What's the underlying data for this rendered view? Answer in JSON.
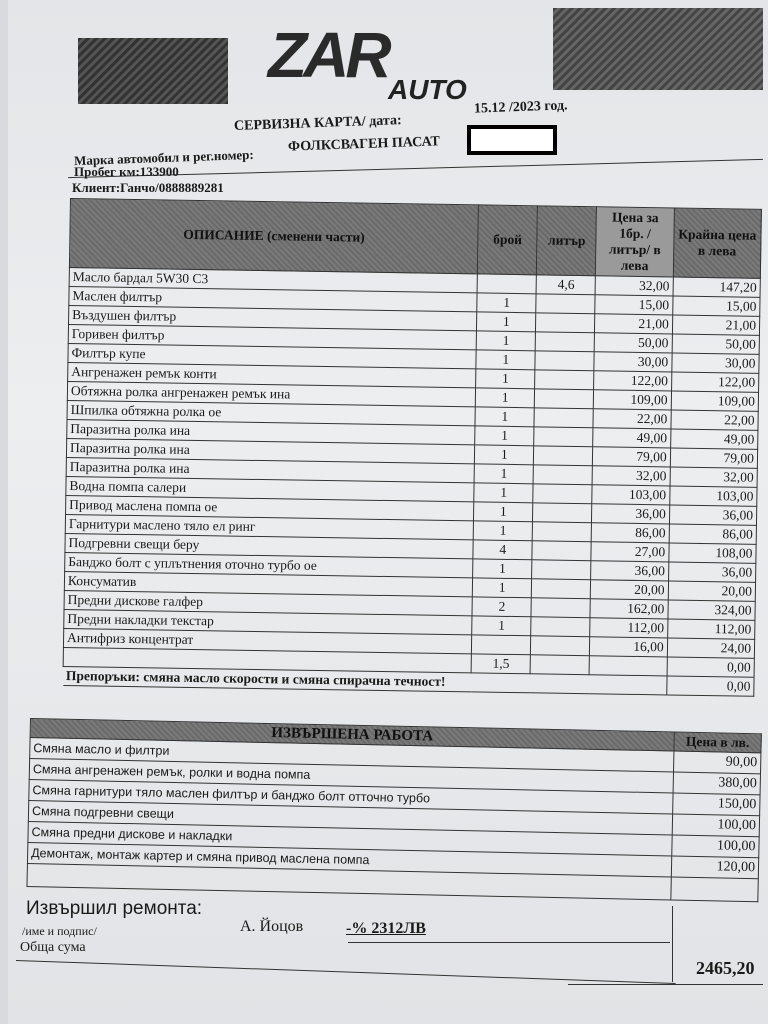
{
  "logo": {
    "brand": "ZAR",
    "sub": "AUTO"
  },
  "header": {
    "title": "СЕРВИЗНА КАРТА/ дата:",
    "date": "15.12 /2023 год.",
    "car_label": "Марка автомобил и рег.номер:",
    "car_value": "ФОЛКСВАГЕН ПАСАТ",
    "mileage": "Пробег км:133900",
    "client": "Клиент:Ганчо/0888889281"
  },
  "parts_table": {
    "headers": {
      "description": "ОПИСАНИЕ (сменени части)",
      "qty": "брой",
      "liters": "литър",
      "unit_price": "Цена за 1бр. /литър/ в лева",
      "total": "Крайна цена в лева"
    },
    "rows": [
      {
        "desc": "Масло бардал 5W30 C3",
        "qty": "",
        "liters": "4,6",
        "price": "32,00",
        "total": "147,20"
      },
      {
        "desc": "Маслен филтър",
        "qty": "1",
        "liters": "",
        "price": "15,00",
        "total": "15,00"
      },
      {
        "desc": "Въздушен филтър",
        "qty": "1",
        "liters": "",
        "price": "21,00",
        "total": "21,00"
      },
      {
        "desc": "Горивен филтър",
        "qty": "1",
        "liters": "",
        "price": "50,00",
        "total": "50,00"
      },
      {
        "desc": "Филтър купе",
        "qty": "1",
        "liters": "",
        "price": "30,00",
        "total": "30,00"
      },
      {
        "desc": "Ангренажен ремък конти",
        "qty": "1",
        "liters": "",
        "price": "122,00",
        "total": "122,00"
      },
      {
        "desc": "Обтяжна ролка ангренажен ремък ина",
        "qty": "1",
        "liters": "",
        "price": "109,00",
        "total": "109,00"
      },
      {
        "desc": "Шпилка обтяжна ролка ое",
        "qty": "1",
        "liters": "",
        "price": "22,00",
        "total": "22,00"
      },
      {
        "desc": "Паразитна ролка ина",
        "qty": "1",
        "liters": "",
        "price": "49,00",
        "total": "49,00"
      },
      {
        "desc": "Паразитна ролка ина",
        "qty": "1",
        "liters": "",
        "price": "79,00",
        "total": "79,00"
      },
      {
        "desc": "Паразитна ролка ина",
        "qty": "1",
        "liters": "",
        "price": "32,00",
        "total": "32,00"
      },
      {
        "desc": "Водна помпа салери",
        "qty": "1",
        "liters": "",
        "price": "103,00",
        "total": "103,00"
      },
      {
        "desc": "Привод маслена помпа ое",
        "qty": "1",
        "liters": "",
        "price": "36,00",
        "total": "36,00"
      },
      {
        "desc": "Гарнитури маслено тяло ел ринг",
        "qty": "1",
        "liters": "",
        "price": "86,00",
        "total": "86,00"
      },
      {
        "desc": "Подгревни свещи беру",
        "qty": "4",
        "liters": "",
        "price": "27,00",
        "total": "108,00"
      },
      {
        "desc": "Банджо болт с уплътнения оточно турбо  ое",
        "qty": "1",
        "liters": "",
        "price": "36,00",
        "total": "36,00"
      },
      {
        "desc": "Консуматив",
        "qty": "1",
        "liters": "",
        "price": "20,00",
        "total": "20,00"
      },
      {
        "desc": "Предни дискове галфер",
        "qty": "2",
        "liters": "",
        "price": "162,00",
        "total": "324,00"
      },
      {
        "desc": "Предни накладки текстар",
        "qty": "1",
        "liters": "",
        "price": "112,00",
        "total": "112,00"
      },
      {
        "desc": "Антифриз концентрат",
        "qty": "",
        "liters": "",
        "price": "16,00",
        "total": "24,00"
      },
      {
        "desc": "",
        "qty": "1,5",
        "liters": "",
        "price": "",
        "total": "0,00"
      }
    ],
    "recommendation": "Препоръки: смяна масло скорости и смяна спирачна течност!",
    "recommendation_total": "0,00"
  },
  "work_table": {
    "title": "ИЗВЪРШЕНА РАБОТА",
    "price_header": "Цена в лв.",
    "rows": [
      {
        "desc": "Смяна масло и филтри",
        "price": "90,00"
      },
      {
        "desc": "Смяна ангренажен ремък, ролки и водна помпа",
        "price": "380,00"
      },
      {
        "desc": "Смяна гарнитури тяло маслен филтър и банджо болт отточно турбо",
        "price": "150,00"
      },
      {
        "desc": "Смяна подгревни свещи",
        "price": "100,00"
      },
      {
        "desc": "Смяна предни дискове и накладки",
        "price": "100,00"
      },
      {
        "desc": "Демонтаж, монтаж картер и смяна привод маслена помпа",
        "price": "120,00"
      }
    ]
  },
  "footer": {
    "performed_by": "Извършил ремонта:",
    "name_sign": "/име и подпис/",
    "mechanic": "А. Йоцов",
    "discount_note": "-% 2312ЛВ",
    "total_label": "Обща сума",
    "total": "2465,20"
  }
}
